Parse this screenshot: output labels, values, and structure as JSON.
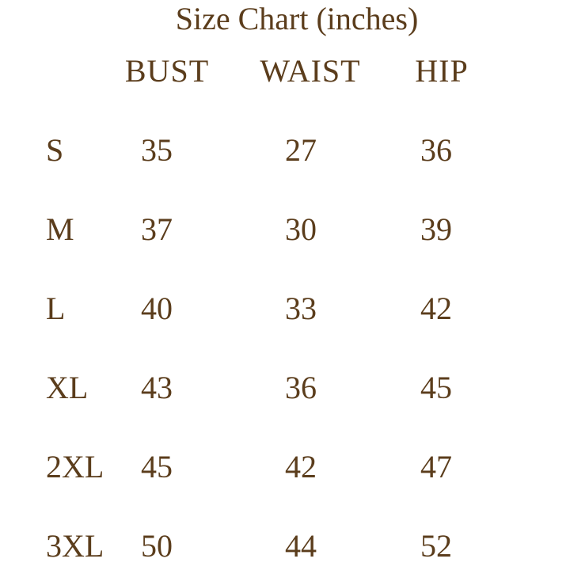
{
  "title": "Size Chart (inches)",
  "table": {
    "columns": [
      "BUST",
      "WAIST",
      "HIP"
    ],
    "rows": [
      [
        "S",
        35,
        27,
        36
      ],
      [
        "M",
        37,
        30,
        39
      ],
      [
        "L",
        40,
        33,
        42
      ],
      [
        "XL",
        43,
        36,
        45
      ],
      [
        "2XL",
        45,
        42,
        47
      ],
      [
        "3XL",
        50,
        44,
        52
      ]
    ]
  }
}
